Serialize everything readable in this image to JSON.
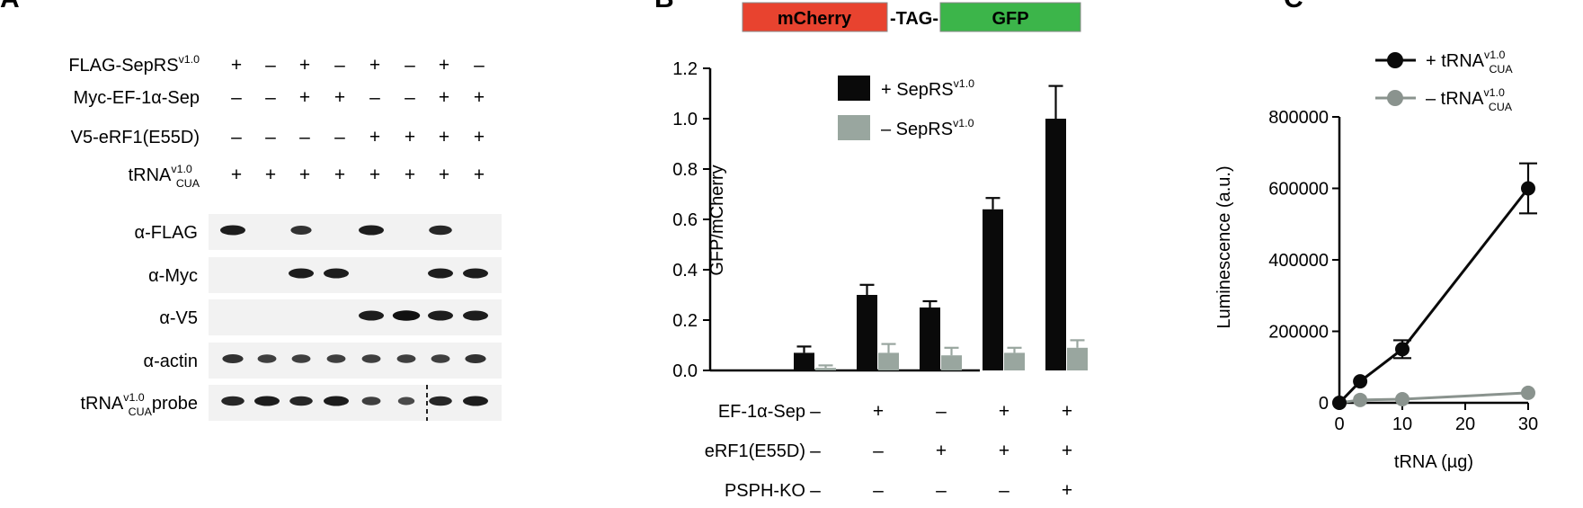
{
  "panel_a": {
    "label": "A",
    "rows": [
      {
        "name": "FLAG-SepRS",
        "sup": "v1.0",
        "sub": "",
        "signs": [
          "+",
          "–",
          "+",
          "–",
          "+",
          "–",
          "+",
          "–"
        ]
      },
      {
        "name": "Myc-EF-1α-Sep",
        "sup": "",
        "sub": "",
        "signs": [
          "–",
          "–",
          "+",
          "+",
          "–",
          "–",
          "+",
          "+"
        ]
      },
      {
        "name": "V5-eRF1(E55D)",
        "sup": "",
        "sub": "",
        "signs": [
          "–",
          "–",
          "–",
          "–",
          "+",
          "+",
          "+",
          "+"
        ]
      },
      {
        "name": "tRNA",
        "sup": "v1.0",
        "sub": "CUA",
        "signs": [
          "+",
          "+",
          "+",
          "+",
          "+",
          "+",
          "+",
          "+"
        ]
      }
    ],
    "blots": [
      {
        "name": "α-FLAG",
        "sup": "",
        "sub": "",
        "suffix": "",
        "bands": [
          1,
          0,
          0.8,
          0,
          1,
          0,
          0.9,
          0
        ]
      },
      {
        "name": "α-Myc",
        "sup": "",
        "sub": "",
        "suffix": "",
        "bands": [
          0,
          0,
          1,
          1,
          0,
          0,
          1,
          1
        ]
      },
      {
        "name": "α-V5",
        "sup": "",
        "sub": "",
        "suffix": "",
        "bands": [
          0,
          0,
          0,
          0,
          1,
          1.1,
          1,
          1
        ]
      },
      {
        "name": "α-actin",
        "sup": "",
        "sub": "",
        "suffix": "",
        "bands": [
          0.8,
          0.7,
          0.7,
          0.7,
          0.7,
          0.7,
          0.7,
          0.8
        ]
      },
      {
        "name": "tRNA",
        "sup": "v1.0",
        "sub": "CUA",
        "suffix": "probe",
        "bands": [
          0.9,
          1,
          0.9,
          1,
          0.7,
          0.6,
          0.9,
          1
        ]
      }
    ]
  },
  "panel_b": {
    "label": "B",
    "construct": {
      "left": "mCherry",
      "mid": "-TAG-",
      "right": "GFP",
      "left_color": "#e8432f",
      "right_color": "#3cb54a"
    },
    "conditions": [
      {
        "name": "EF-1α-Sep",
        "signs": [
          "–",
          "+",
          "–",
          "+",
          "+"
        ]
      },
      {
        "name": "eRF1(E55D)",
        "signs": [
          "–",
          "–",
          "+",
          "+",
          "+"
        ]
      },
      {
        "name": "PSPH-KO",
        "signs": [
          "–",
          "–",
          "–",
          "–",
          "+"
        ]
      }
    ],
    "legend": [
      {
        "prefix": "+ SepRS",
        "sup": "v1.0"
      },
      {
        "prefix": "– SepRS",
        "sup": "v1.0"
      }
    ]
  },
  "panel_c": {
    "label": "C",
    "legend": [
      {
        "prefix": "+ tRNA",
        "sup": "v1.0",
        "sub": "CUA"
      },
      {
        "prefix": "– tRNA",
        "sup": "v1.0",
        "sub": "CUA"
      }
    ]
  },
  "chart_data": [
    {
      "type": "bar",
      "panel": "B",
      "ylabel": "GFP/mCherry",
      "ylim": [
        0,
        1.2
      ],
      "yticks": [
        "0.0",
        "0.2",
        "0.4",
        "0.6",
        "0.8",
        "1.0",
        "1.2"
      ],
      "series": [
        {
          "name": "+ SepRSv1.0",
          "color": "#0a0a0a",
          "values": [
            0.07,
            0.3,
            0.25,
            0.64,
            1.0
          ],
          "errors": [
            0.025,
            0.04,
            0.025,
            0.045,
            0.13
          ]
        },
        {
          "name": "– SepRSv1.0",
          "color": "#99a69f",
          "values": [
            0.01,
            0.07,
            0.06,
            0.07,
            0.09
          ],
          "errors": [
            0.01,
            0.035,
            0.03,
            0.02,
            0.03
          ]
        }
      ]
    },
    {
      "type": "line",
      "panel": "C",
      "xlabel": "tRNA (µg)",
      "ylabel": "Luminescence (a.u.)",
      "xlim": [
        0,
        30
      ],
      "ylim": [
        0,
        800000
      ],
      "xticks": [
        "0",
        "10",
        "20",
        "30"
      ],
      "yticks": [
        "0",
        "200000",
        "400000",
        "600000",
        "800000"
      ],
      "series": [
        {
          "name": "+ tRNAv1.0CUA",
          "color": "#0a0a0a",
          "x": [
            0,
            3.3,
            10,
            30
          ],
          "y": [
            0,
            60000,
            150000,
            600000
          ],
          "errors": [
            0,
            0,
            25000,
            70000
          ]
        },
        {
          "name": "– tRNAv1.0CUA",
          "color": "#8a938e",
          "x": [
            0,
            3.3,
            10,
            30
          ],
          "y": [
            0,
            8000,
            10000,
            28000
          ],
          "errors": [
            0,
            0,
            0,
            0
          ]
        }
      ]
    }
  ]
}
